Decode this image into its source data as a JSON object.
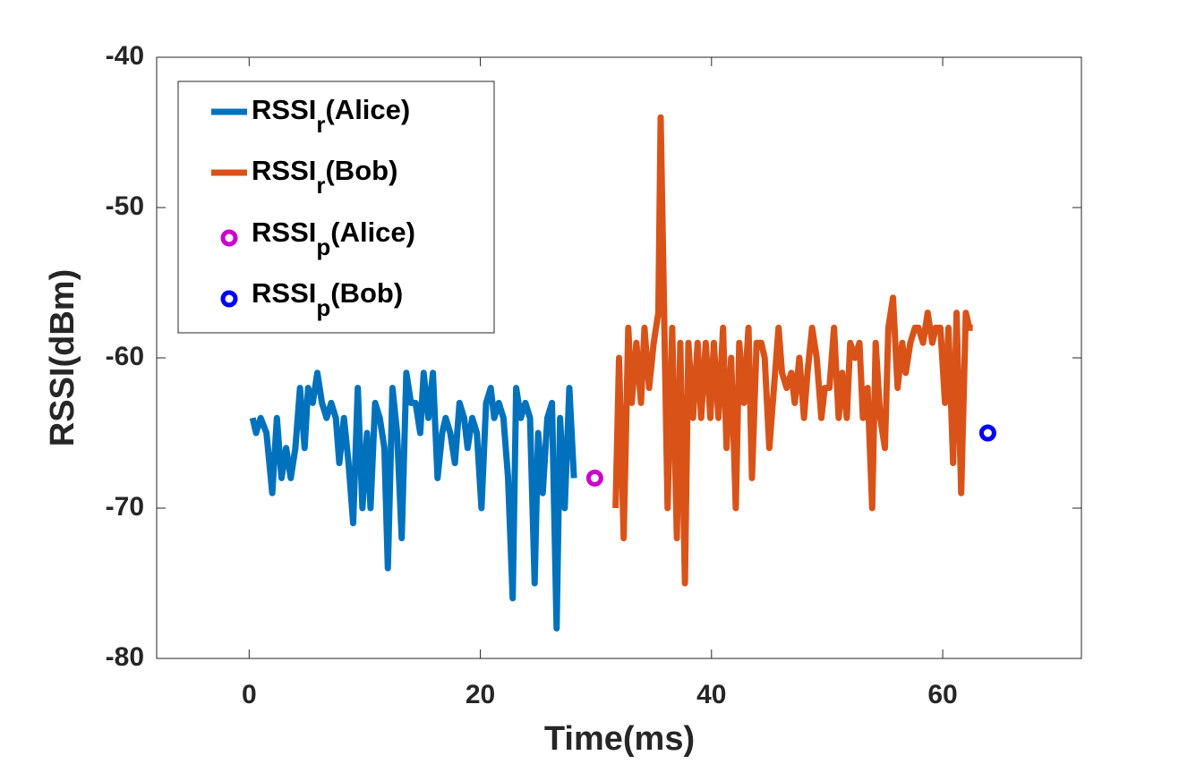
{
  "chart_data": {
    "type": "line",
    "xlabel": "Time(ms)",
    "ylabel": "RSSI(dBm)",
    "xlim": [
      -8,
      72
    ],
    "ylim": [
      -80,
      -40
    ],
    "xticks": [
      0,
      20,
      40,
      60
    ],
    "yticks": [
      -80,
      -70,
      -60,
      -50,
      -40
    ],
    "grid": false,
    "legend": "upper left",
    "series": [
      {
        "name": "RSSIr(Alice)",
        "color": "#0072BD",
        "style": "line",
        "x": [
          0.3,
          0.6,
          1,
          1.5,
          2,
          2.4,
          2.8,
          3.2,
          3.6,
          4,
          4.4,
          4.8,
          5.1,
          5.5,
          5.9,
          6.3,
          6.7,
          7.1,
          7.5,
          7.8,
          8.2,
          8.6,
          9,
          9.4,
          9.8,
          10.2,
          10.5,
          10.9,
          11.3,
          11.7,
          12,
          12.4,
          12.8,
          13.2,
          13.6,
          14,
          14.4,
          14.8,
          15.1,
          15.5,
          15.9,
          16.3,
          16.7,
          17,
          17.4,
          17.8,
          18.2,
          18.6,
          18.9,
          19.3,
          19.7,
          20.1,
          20.5,
          20.9,
          21.2,
          21.6,
          22,
          22.4,
          22.8,
          23.1,
          23.5,
          23.9,
          24.3,
          24.7,
          25,
          25.4,
          25.8,
          26.2,
          26.6,
          26.9,
          27.3,
          27.7,
          28.1
        ],
        "values": [
          -64,
          -65,
          -64,
          -65,
          -69,
          -64,
          -68,
          -66,
          -68,
          -66,
          -62,
          -66,
          -62,
          -63,
          -61,
          -63,
          -64,
          -63,
          -64,
          -67,
          -64,
          -67,
          -71,
          -62,
          -70,
          -65,
          -70,
          -63,
          -64,
          -66,
          -74,
          -62,
          -65,
          -72,
          -61,
          -63,
          -63,
          -65,
          -61,
          -64,
          -61,
          -68,
          -65,
          -64,
          -65,
          -67,
          -63,
          -64,
          -66,
          -64,
          -65,
          -70,
          -63,
          -62,
          -64,
          -63,
          -64,
          -68,
          -76,
          -62,
          -64,
          -63,
          -64,
          -75,
          -65,
          -69,
          -64,
          -63,
          -78,
          -64,
          -70,
          -62,
          -68
        ]
      },
      {
        "name": "RSSIr(Bob)",
        "color": "#D95319",
        "style": "line",
        "x": [
          31.7,
          32,
          32.4,
          32.8,
          33.1,
          33.5,
          33.9,
          34.2,
          34.6,
          35,
          35.4,
          35.6,
          35.9,
          36.2,
          36.6,
          37,
          37.3,
          37.7,
          38,
          38.4,
          38.8,
          39.1,
          39.5,
          39.9,
          40.2,
          40.6,
          41,
          41.3,
          41.7,
          42.1,
          42.4,
          42.8,
          43.2,
          43.5,
          43.9,
          44.3,
          44.6,
          45,
          45.4,
          45.8,
          46.1,
          46.5,
          46.9,
          47.2,
          47.6,
          48,
          48.3,
          48.7,
          49.1,
          49.5,
          49.8,
          50.2,
          50.6,
          51,
          51.3,
          51.7,
          52,
          52.4,
          52.8,
          53.1,
          53.5,
          53.9,
          54.2,
          54.6,
          55,
          55.3,
          55.7,
          56.1,
          56.5,
          56.8,
          57.2,
          57.6,
          57.9,
          58.3,
          58.7,
          59.1,
          59.4,
          59.8,
          60.2,
          60.5,
          60.9,
          61.2,
          61.6,
          62,
          62.3,
          62.6
        ],
        "values": [
          -70,
          -60,
          -72,
          -58,
          -63,
          -59,
          -63,
          -58,
          -62,
          -59,
          -57,
          -44,
          -57,
          -70,
          -58,
          -72,
          -59,
          -75,
          -59,
          -64,
          -59,
          -64,
          -59,
          -64,
          -59,
          -64,
          -58,
          -66,
          -60,
          -70,
          -59,
          -63,
          -58,
          -68,
          -59,
          -59,
          -60,
          -66,
          -62,
          -58,
          -61,
          -62,
          -61,
          -63,
          -60,
          -64,
          -61,
          -58,
          -60,
          -64,
          -62,
          -62,
          -58,
          -64,
          -61,
          -64,
          -59,
          -60,
          -59,
          -64,
          -62,
          -70,
          -59,
          -64,
          -66,
          -58,
          -56,
          -62,
          -59,
          -61,
          -59,
          -58,
          -58,
          -59,
          -57,
          -59,
          -58,
          -58,
          -63,
          -58,
          -67,
          -57,
          -69,
          -57,
          -58,
          -58
        ]
      },
      {
        "name": "RSSIp(Alice)",
        "color": "#CC00CC",
        "style": "marker",
        "x": [
          29.9
        ],
        "values": [
          -68
        ]
      },
      {
        "name": "RSSIp(Bob)",
        "color": "#0000FF",
        "style": "marker",
        "x": [
          63.9
        ],
        "values": [
          -65
        ]
      }
    ]
  }
}
